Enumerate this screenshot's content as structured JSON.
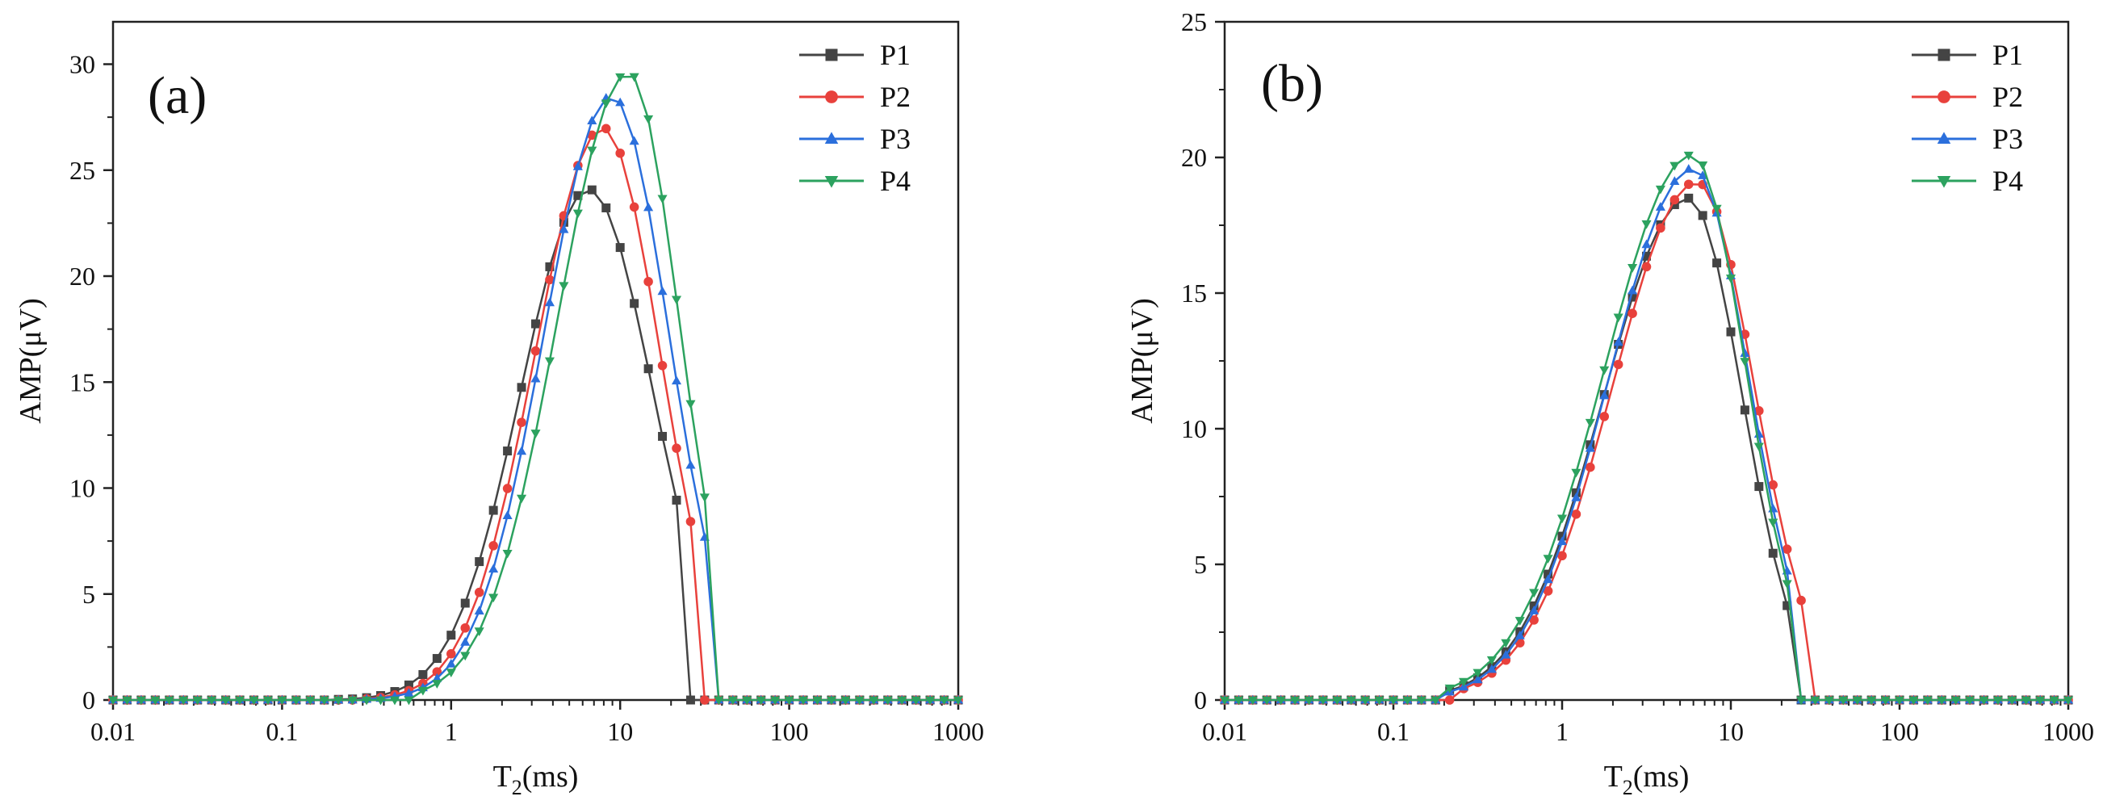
{
  "chart_data": [
    {
      "type": "line",
      "panel_label": "(a)",
      "xlabel": "T2(ms)",
      "ylabel": "AMP(μV)",
      "x_scale": "log",
      "xlim": [
        0.01,
        1000
      ],
      "ylim": [
        0,
        32
      ],
      "xticks": [
        0.01,
        0.1,
        1,
        10,
        100,
        1000
      ],
      "xtick_labels": [
        "0.01",
        "0.1",
        "1",
        "10",
        "100",
        "1000"
      ],
      "yticks": [
        0,
        5,
        10,
        15,
        20,
        25,
        30
      ],
      "grid": false,
      "legend_position": "top-right",
      "series": [
        {
          "name": "P1",
          "color": "#444444",
          "marker": "square",
          "peak_x": 6.5,
          "peak_y": 24.1,
          "sigma_left": 0.4,
          "sigma_right": 0.38,
          "x_start": 0.2,
          "x_end": 31.6
        },
        {
          "name": "P2",
          "color": "#e8413c",
          "marker": "circle",
          "peak_x": 7.9,
          "peak_y": 27.0,
          "sigma_left": 0.4,
          "sigma_right": 0.34,
          "x_start": 0.3,
          "x_end": 35.5
        },
        {
          "name": "P3",
          "color": "#2b6fdc",
          "marker": "triangle-up",
          "peak_x": 8.9,
          "peak_y": 28.5,
          "sigma_left": 0.4,
          "sigma_right": 0.34,
          "x_start": 0.3,
          "x_end": 39.8
        },
        {
          "name": "P4",
          "color": "#2ca25f",
          "marker": "triangle-down",
          "peak_x": 11.2,
          "peak_y": 29.6,
          "sigma_left": 0.42,
          "sigma_right": 0.3,
          "x_start": 0.6,
          "x_end": 44.7
        }
      ]
    },
    {
      "type": "line",
      "panel_label": "(b)",
      "xlabel": "T2(ms)",
      "ylabel": "AMP(μV)",
      "x_scale": "log",
      "xlim": [
        0.01,
        1000
      ],
      "ylim": [
        0,
        25
      ],
      "xticks": [
        0.01,
        0.1,
        1,
        10,
        100,
        1000
      ],
      "xtick_labels": [
        "0.01",
        "0.1",
        "1",
        "10",
        "100",
        "1000"
      ],
      "yticks": [
        0,
        5,
        10,
        15,
        20,
        25
      ],
      "grid": false,
      "legend_position": "top-right",
      "series": [
        {
          "name": "P1",
          "color": "#444444",
          "marker": "square",
          "peak_x": 5.6,
          "peak_y": 18.5,
          "sigma_left": 0.5,
          "sigma_right": 0.32,
          "x_start": 0.2,
          "x_end": 28.2
        },
        {
          "name": "P2",
          "color": "#e8413c",
          "marker": "circle",
          "peak_x": 6.3,
          "peak_y": 19.1,
          "sigma_left": 0.5,
          "sigma_right": 0.34,
          "x_start": 0.25,
          "x_end": 35.5
        },
        {
          "name": "P3",
          "color": "#2b6fdc",
          "marker": "triangle-up",
          "peak_x": 6.0,
          "peak_y": 19.6,
          "sigma_left": 0.5,
          "sigma_right": 0.33,
          "x_start": 0.2,
          "x_end": 31.6
        },
        {
          "name": "P4",
          "color": "#2ca25f",
          "marker": "triangle-down",
          "peak_x": 5.9,
          "peak_y": 20.1,
          "sigma_left": 0.52,
          "sigma_right": 0.32,
          "x_start": 0.2,
          "x_end": 31.6
        }
      ]
    }
  ]
}
